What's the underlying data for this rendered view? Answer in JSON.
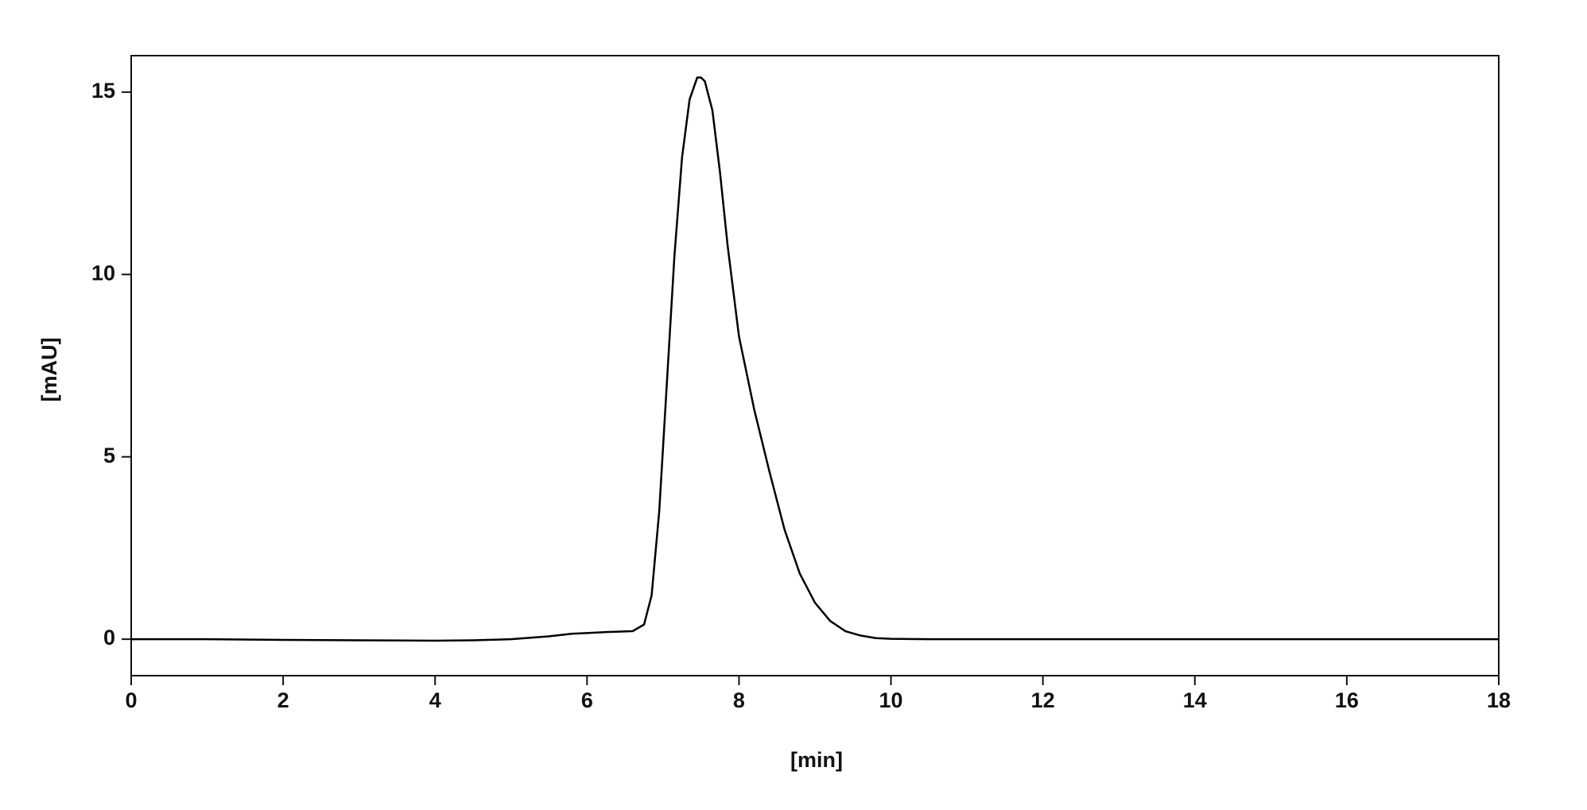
{
  "chart_data": {
    "type": "line",
    "xlabel": "[min]",
    "ylabel": "[mAU]",
    "x": [
      0,
      1,
      2,
      3,
      4,
      4.5,
      5,
      5.5,
      5.8,
      6,
      6.3,
      6.6,
      6.75,
      6.85,
      6.95,
      7.05,
      7.15,
      7.25,
      7.35,
      7.45,
      7.5,
      7.55,
      7.65,
      7.75,
      7.85,
      8,
      8.2,
      8.4,
      8.6,
      8.8,
      9,
      9.2,
      9.4,
      9.6,
      9.8,
      10,
      10.5,
      12,
      14,
      16,
      18
    ],
    "series": [
      {
        "color": "#000000",
        "values": [
          0,
          0,
          -0.02,
          -0.03,
          -0.04,
          -0.03,
          0,
          0.08,
          0.15,
          0.17,
          0.2,
          0.22,
          0.4,
          1.2,
          3.5,
          7,
          10.5,
          13.2,
          14.8,
          15.4,
          15.4,
          15.3,
          14.5,
          12.8,
          10.8,
          8.3,
          6.3,
          4.6,
          3.0,
          1.8,
          1.0,
          0.5,
          0.22,
          0.1,
          0.03,
          0.01,
          0,
          0,
          0,
          0,
          0
        ]
      }
    ],
    "xlim": [
      0,
      18
    ],
    "xticks": [
      0,
      2,
      4,
      6,
      8,
      10,
      12,
      14,
      16,
      18
    ],
    "ylim": [
      -1,
      16
    ],
    "yticks": [
      0,
      5,
      10,
      15
    ],
    "grid": false
  }
}
